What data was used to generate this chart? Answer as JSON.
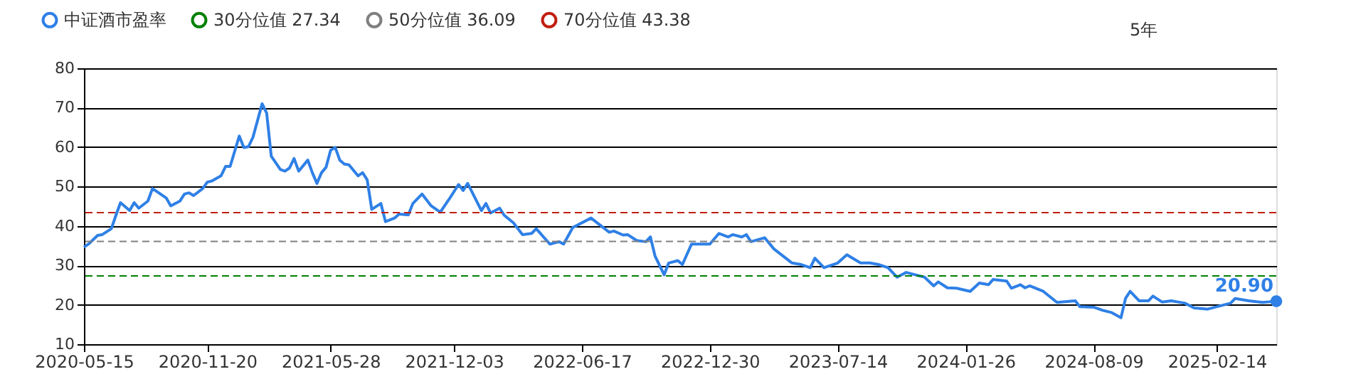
{
  "chart_data": {
    "type": "line",
    "x": [
      "2020-05-15",
      "2020-05-22",
      "2020-06-05",
      "2020-06-12",
      "2020-06-26",
      "2020-07-03",
      "2020-07-10",
      "2020-07-24",
      "2020-07-31",
      "2020-08-07",
      "2020-08-21",
      "2020-08-28",
      "2020-09-18",
      "2020-09-25",
      "2020-10-09",
      "2020-10-16",
      "2020-10-23",
      "2020-10-30",
      "2020-11-13",
      "2020-11-20",
      "2020-11-27",
      "2020-12-11",
      "2020-12-18",
      "2020-12-25",
      "2021-01-08",
      "2021-01-15",
      "2021-01-22",
      "2021-01-29",
      "2021-02-12",
      "2021-02-19",
      "2021-02-26",
      "2021-03-12",
      "2021-03-19",
      "2021-03-26",
      "2021-04-02",
      "2021-04-09",
      "2021-04-23",
      "2021-04-30",
      "2021-05-07",
      "2021-05-14",
      "2021-05-21",
      "2021-05-28",
      "2021-06-04",
      "2021-06-11",
      "2021-06-18",
      "2021-06-25",
      "2021-07-09",
      "2021-07-16",
      "2021-07-23",
      "2021-07-30",
      "2021-08-13",
      "2021-08-20",
      "2021-09-03",
      "2021-09-10",
      "2021-09-24",
      "2021-10-01",
      "2021-10-15",
      "2021-10-29",
      "2021-11-12",
      "2021-11-26",
      "2021-12-10",
      "2021-12-17",
      "2021-12-24",
      "2022-01-14",
      "2022-01-21",
      "2022-01-28",
      "2022-02-11",
      "2022-02-18",
      "2022-03-04",
      "2022-03-18",
      "2022-04-01",
      "2022-04-08",
      "2022-04-29",
      "2022-05-13",
      "2022-05-20",
      "2022-06-03",
      "2022-07-01",
      "2022-07-15",
      "2022-07-29",
      "2022-08-05",
      "2022-08-19",
      "2022-08-26",
      "2022-09-09",
      "2022-09-23",
      "2022-09-30",
      "2022-10-07",
      "2022-10-21",
      "2022-10-28",
      "2022-11-11",
      "2022-11-18",
      "2022-12-02",
      "2022-12-30",
      "2023-01-13",
      "2023-01-27",
      "2023-02-03",
      "2023-02-17",
      "2023-02-24",
      "2023-03-03",
      "2023-03-24",
      "2023-04-07",
      "2023-04-14",
      "2023-05-05",
      "2023-05-19",
      "2023-06-02",
      "2023-06-09",
      "2023-06-23",
      "2023-07-14",
      "2023-07-28",
      "2023-08-18",
      "2023-09-01",
      "2023-09-15",
      "2023-09-29",
      "2023-10-13",
      "2023-10-27",
      "2023-11-17",
      "2023-11-24",
      "2023-12-08",
      "2023-12-15",
      "2023-12-29",
      "2024-01-12",
      "2024-02-02",
      "2024-02-16",
      "2024-03-01",
      "2024-03-08",
      "2024-03-29",
      "2024-04-05",
      "2024-04-19",
      "2024-04-26",
      "2024-05-03",
      "2024-05-24",
      "2024-06-14",
      "2024-07-12",
      "2024-07-19",
      "2024-08-09",
      "2024-08-23",
      "2024-09-06",
      "2024-09-20",
      "2024-09-27",
      "2024-10-04",
      "2024-10-18",
      "2024-11-01",
      "2024-11-08",
      "2024-11-22",
      "2024-12-06",
      "2024-12-27",
      "2025-01-10",
      "2025-01-31",
      "2025-02-21",
      "2025-03-07",
      "2025-03-14",
      "2025-04-04",
      "2025-04-25",
      "2025-05-16"
    ],
    "series": [
      {
        "name": "中证酒市盈率",
        "color": "#2f80e6",
        "values": [
          34.6,
          35.4,
          37.6,
          37.8,
          39.3,
          42.7,
          45.9,
          43.9,
          45.9,
          44.5,
          46.3,
          49.5,
          47.1,
          45.1,
          46.3,
          48.1,
          48.4,
          47.7,
          49.5,
          51.1,
          51.4,
          52.7,
          55.1,
          55.1,
          62.8,
          59.9,
          60.1,
          62.5,
          71.0,
          68.6,
          57.7,
          54.3,
          53.9,
          54.7,
          57.1,
          53.9,
          56.7,
          53.5,
          50.8,
          53.5,
          54.9,
          59.2,
          59.9,
          56.7,
          55.7,
          55.5,
          52.7,
          53.5,
          51.7,
          44.2,
          45.7,
          41.1,
          42.0,
          43.0,
          42.8,
          45.7,
          48.1,
          45.1,
          43.5,
          46.9,
          50.5,
          49.0,
          50.8,
          43.9,
          45.7,
          43.3,
          44.5,
          42.7,
          40.8,
          37.8,
          38.1,
          39.3,
          35.4,
          36.0,
          35.4,
          39.6,
          42.0,
          40.2,
          38.4,
          38.7,
          37.7,
          37.8,
          36.3,
          36.0,
          37.2,
          32.4,
          27.6,
          30.6,
          31.2,
          30.2,
          35.4,
          35.4,
          38.1,
          37.2,
          37.8,
          37.2,
          37.8,
          36.0,
          37.0,
          34.2,
          33.3,
          30.6,
          30.2,
          29.4,
          31.8,
          29.4,
          30.6,
          32.7,
          30.6,
          30.6,
          30.2,
          29.4,
          27.0,
          28.2,
          27.3,
          27.0,
          24.8,
          25.8,
          24.3,
          24.2,
          23.4,
          25.5,
          25.1,
          26.4,
          26.0,
          24.2,
          25.1,
          24.3,
          24.8,
          23.4,
          20.6,
          21.0,
          19.5,
          19.4,
          18.6,
          18.0,
          16.7,
          21.6,
          23.4,
          21.0,
          21.0,
          22.2,
          20.7,
          21.0,
          20.4,
          19.2,
          18.9,
          19.8,
          20.4,
          21.6,
          21.0,
          20.6,
          20.9
        ],
        "value_labels": [
          null,
          null,
          null,
          null,
          null,
          null,
          null,
          null,
          null,
          null,
          null,
          null,
          null,
          null,
          null,
          null,
          null,
          null,
          null,
          null,
          null,
          null,
          null,
          null,
          null,
          null,
          null,
          null,
          null,
          null,
          null,
          null,
          null,
          null,
          null,
          null,
          null,
          null,
          null,
          null,
          null,
          null,
          null,
          null,
          null,
          null,
          null,
          null,
          null,
          null,
          null,
          null,
          null,
          null,
          null,
          null,
          null,
          null,
          null,
          null,
          null,
          null,
          null,
          null,
          null,
          null,
          null,
          null,
          null,
          null,
          null,
          null,
          null,
          null,
          null,
          null,
          null,
          null,
          null,
          null,
          null,
          null,
          null,
          null,
          null,
          null,
          null,
          null,
          null,
          null,
          null,
          null,
          null,
          null,
          null,
          null,
          null,
          null,
          null,
          null,
          null,
          null,
          null,
          null,
          null,
          null,
          null,
          null,
          null,
          null,
          null,
          null,
          null,
          null,
          null,
          null,
          null,
          null,
          null,
          null,
          null,
          null,
          null,
          null,
          null,
          null,
          null,
          null,
          null,
          null,
          null,
          null,
          null,
          null,
          null,
          null,
          null,
          null,
          null,
          null,
          null,
          null,
          null,
          null,
          null,
          null,
          null,
          null,
          null,
          null,
          null,
          null,
          "20.90"
        ]
      }
    ],
    "ref_lines": [
      {
        "axis": "y",
        "value": 27.34,
        "label": "30分位值 27.34",
        "color": "#008000",
        "line_style": "dashed"
      },
      {
        "axis": "y",
        "value": 36.09,
        "label": "50分位值 36.09",
        "color": "#808080",
        "line_style": "dashed"
      },
      {
        "axis": "y",
        "value": 43.38,
        "label": "70分位值 43.38",
        "color": "#c02010",
        "line_style": "dashed"
      }
    ],
    "xlim": [
      "2020-05-15",
      "2025-05-16"
    ],
    "xticks": [
      "2020-05-15",
      "2020-11-20",
      "2021-05-28",
      "2021-12-03",
      "2022-06-17",
      "2022-12-30",
      "2023-07-14",
      "2024-01-26",
      "2024-08-09",
      "2025-02-14"
    ],
    "ylim": [
      10,
      80
    ],
    "yticks": [
      10,
      20,
      30,
      40,
      50,
      60,
      70,
      80
    ],
    "grid": "y",
    "legend": "top left",
    "marker": "none",
    "line_style": "solid",
    "annotations": [
      "5年"
    ]
  }
}
